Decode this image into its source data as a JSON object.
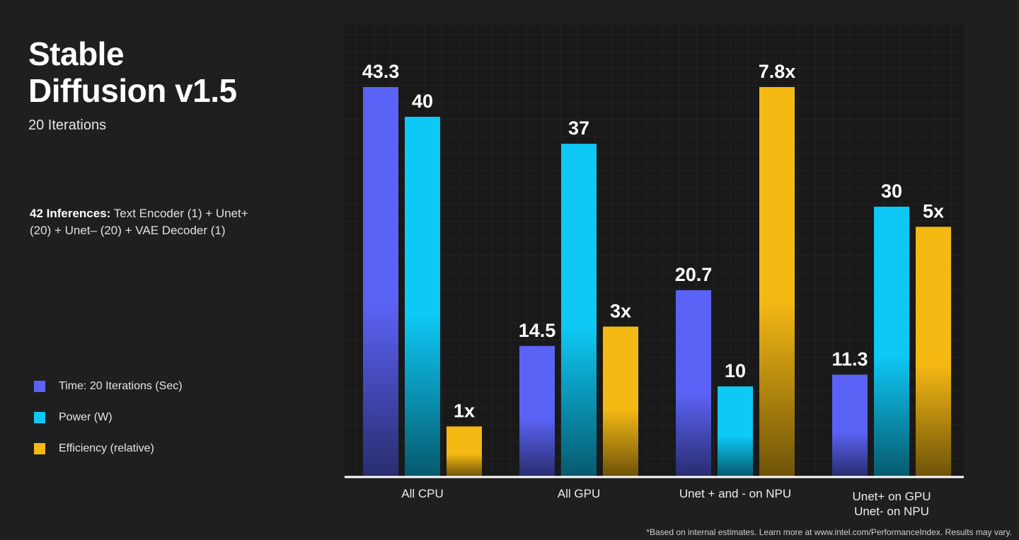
{
  "header": {
    "title_line1": "Stable",
    "title_line2": "Diffusion v1.5",
    "subtitle": "20 Iterations"
  },
  "inferences": {
    "bold": "42 Inferences:",
    "text": " Text Encoder (1) + Unet+ (20) + Unet– (20) + VAE Decoder (1)"
  },
  "legend": [
    {
      "label": "Time: 20 Iterations (Sec)",
      "color": "#5b63f6"
    },
    {
      "label": "Power (W)",
      "color": "#0ec8f5"
    },
    {
      "label": "Efficiency (relative)",
      "color": "#f5b914"
    }
  ],
  "footnote": "*Based on internal estimates. Learn more at www.intel.com/PerformanceIndex. Results may vary.",
  "chart_data": {
    "type": "bar",
    "title": "Stable Diffusion v1.5",
    "categories": [
      [
        "All CPU"
      ],
      [
        "All GPU"
      ],
      [
        "Unet + and  -  on NPU"
      ],
      [
        "Unet+ on GPU",
        "Unet- on NPU"
      ]
    ],
    "series": [
      {
        "name": "Time: 20 Iterations (Sec)",
        "color": "#5b63f6",
        "values": [
          43.3,
          14.5,
          20.7,
          11.3
        ],
        "labels": [
          "43.3",
          "14.5",
          "20.7",
          "11.3"
        ]
      },
      {
        "name": "Power (W)",
        "color": "#0ec8f5",
        "values": [
          40,
          37,
          10,
          30
        ],
        "labels": [
          "40",
          "37",
          "10",
          "30"
        ]
      },
      {
        "name": "Efficiency (relative)",
        "color": "#f5b914",
        "values": [
          1,
          3,
          7.8,
          5
        ],
        "labels": [
          "1x",
          "3x",
          "7.8x",
          "5x"
        ]
      }
    ],
    "xlabel": "",
    "ylabel": "",
    "grid": true,
    "legend_position": "left"
  }
}
